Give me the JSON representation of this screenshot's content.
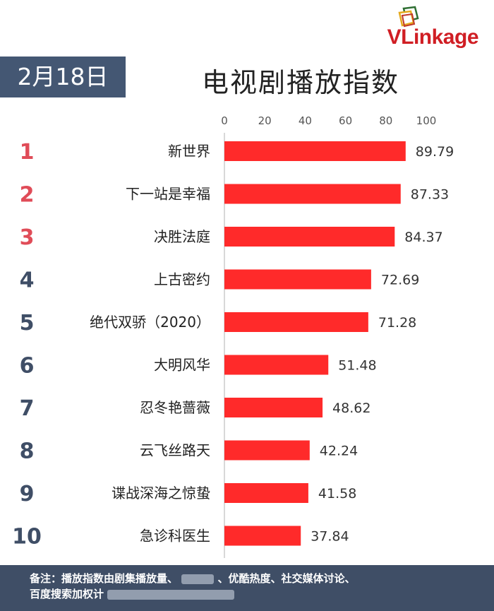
{
  "brand": {
    "logo_text": "VLinkage"
  },
  "date_label": "2月18日",
  "chart_data": {
    "type": "bar",
    "orientation": "horizontal",
    "title": "电视剧播放指数",
    "ranks": [
      "1",
      "2",
      "3",
      "4",
      "5",
      "6",
      "7",
      "8",
      "9",
      "10"
    ],
    "categories": [
      "新世界",
      "下一站是幸福",
      "决胜法庭",
      "上古密约",
      "绝代双骄（2020）",
      "大明风华",
      "忍冬艳蔷薇",
      "云飞丝路天",
      "谍战深海之惊蛰",
      "急诊科医生"
    ],
    "values": [
      89.79,
      87.33,
      84.37,
      72.69,
      71.28,
      51.48,
      48.62,
      42.24,
      41.58,
      37.84
    ],
    "value_labels": [
      "89.79",
      "87.33",
      "84.37",
      "72.69",
      "71.28",
      "51.48",
      "48.62",
      "42.24",
      "41.58",
      "37.84"
    ],
    "xlim": [
      0,
      100
    ],
    "xticks": [
      "0",
      "20",
      "40",
      "60",
      "80",
      "100"
    ],
    "axis_position": "top",
    "grid": false
  },
  "colors": {
    "bar": "#ff2a2a",
    "rank_top3": "#e04c58",
    "rank_rest": "#3f4e66",
    "header_bg": "#445773",
    "footer_bg": "#3f4e66"
  },
  "footer": {
    "line1_a": "备注：播放指数由剧集播放量、",
    "line1_b": "、优酷热度、社交媒体讨论、",
    "line2": "百度搜索加权计"
  }
}
